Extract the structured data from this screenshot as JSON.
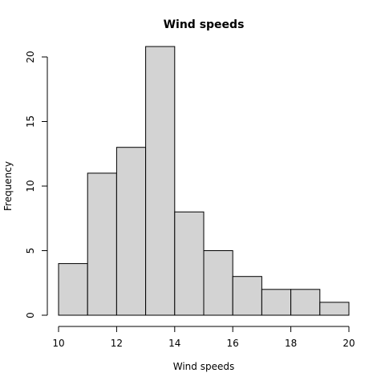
{
  "chart_data": {
    "type": "bar",
    "title": "Wind speeds",
    "xlabel": "Wind speeds",
    "ylabel": "Frequency",
    "bins": [
      {
        "from": 10,
        "to": 11,
        "count": 4
      },
      {
        "from": 11,
        "to": 12,
        "count": 11
      },
      {
        "from": 12,
        "to": 13,
        "count": 13
      },
      {
        "from": 13,
        "to": 14,
        "count": 21
      },
      {
        "from": 14,
        "to": 15,
        "count": 8
      },
      {
        "from": 15,
        "to": 16,
        "count": 5
      },
      {
        "from": 16,
        "to": 17,
        "count": 3
      },
      {
        "from": 17,
        "to": 18,
        "count": 2
      },
      {
        "from": 18,
        "to": 19,
        "count": 2
      },
      {
        "from": 19,
        "to": 20,
        "count": 1
      }
    ],
    "xlim": [
      10,
      20
    ],
    "ylim": [
      0,
      20
    ],
    "xticks": [
      "10",
      "12",
      "14",
      "16",
      "18",
      "20"
    ],
    "yticks": [
      "0",
      "5",
      "10",
      "15",
      "20"
    ],
    "grid": false,
    "bar_color": "#d3d3d3",
    "edge_color": "#000000"
  }
}
